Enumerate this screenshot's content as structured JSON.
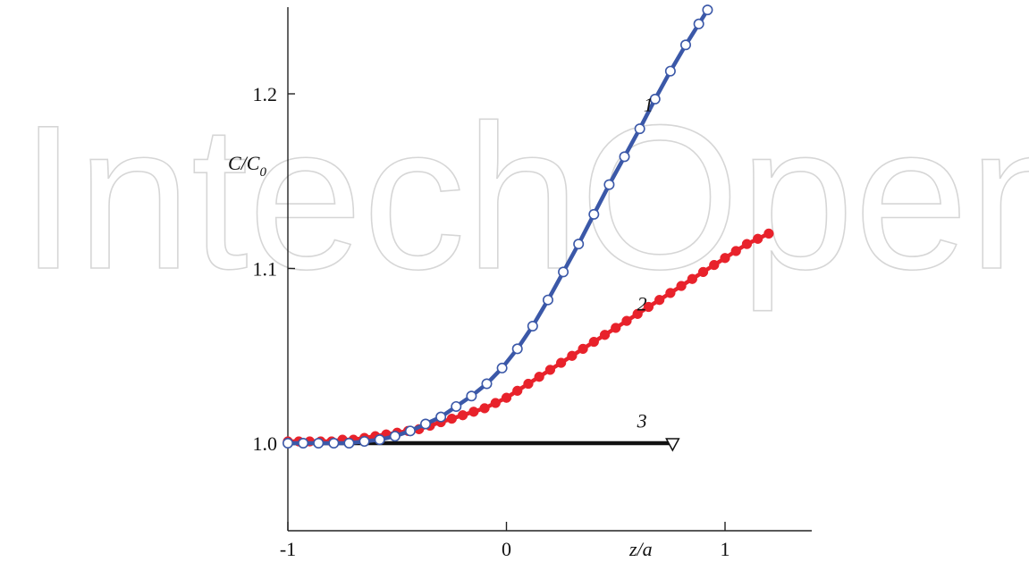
{
  "watermark": "IntechOpen",
  "chart_data": {
    "type": "line",
    "xlabel": "z/a",
    "ylabel": "C/C",
    "ylabel_sub": "0",
    "xlim": [
      -1,
      1.4
    ],
    "ylim": [
      0.95,
      1.25
    ],
    "xticks": [
      {
        "value": -1,
        "label": "-1"
      },
      {
        "value": 0,
        "label": "0"
      },
      {
        "value": 1,
        "label": "1"
      }
    ],
    "yticks": [
      {
        "value": 1.0,
        "label": "1.0"
      },
      {
        "value": 1.1,
        "label": "1.1"
      },
      {
        "value": 1.2,
        "label": "1.2"
      }
    ],
    "grid": false,
    "series": [
      {
        "name": "1",
        "color": "#3b58a8",
        "marker": "open-circle",
        "label_at": [
          0.65,
          1.19
        ],
        "x": [
          -1.0,
          -0.93,
          -0.86,
          -0.79,
          -0.72,
          -0.65,
          -0.58,
          -0.51,
          -0.44,
          -0.37,
          -0.3,
          -0.23,
          -0.16,
          -0.09,
          -0.02,
          0.05,
          0.12,
          0.19,
          0.26,
          0.33,
          0.4,
          0.47,
          0.54,
          0.61,
          0.68,
          0.75,
          0.82,
          0.88,
          0.92
        ],
        "y": [
          1.0,
          1.0,
          1.0,
          1.0,
          1.0,
          1.001,
          1.002,
          1.004,
          1.007,
          1.011,
          1.015,
          1.021,
          1.027,
          1.034,
          1.043,
          1.054,
          1.067,
          1.082,
          1.098,
          1.114,
          1.131,
          1.148,
          1.164,
          1.18,
          1.197,
          1.213,
          1.228,
          1.24,
          1.248
        ]
      },
      {
        "name": "2",
        "color": "#e8222b",
        "marker": "filled-circle",
        "label_at": [
          0.62,
          1.076
        ],
        "x": [
          -1.0,
          -0.95,
          -0.9,
          -0.85,
          -0.8,
          -0.75,
          -0.7,
          -0.65,
          -0.6,
          -0.55,
          -0.5,
          -0.45,
          -0.4,
          -0.35,
          -0.3,
          -0.25,
          -0.2,
          -0.15,
          -0.1,
          -0.05,
          0.0,
          0.05,
          0.1,
          0.15,
          0.2,
          0.25,
          0.3,
          0.35,
          0.4,
          0.45,
          0.5,
          0.55,
          0.6,
          0.65,
          0.7,
          0.75,
          0.8,
          0.85,
          0.9,
          0.95,
          1.0,
          1.05,
          1.1,
          1.15,
          1.2
        ],
        "y": [
          1.001,
          1.001,
          1.001,
          1.001,
          1.001,
          1.002,
          1.002,
          1.003,
          1.004,
          1.005,
          1.006,
          1.007,
          1.008,
          1.01,
          1.012,
          1.014,
          1.016,
          1.018,
          1.02,
          1.023,
          1.026,
          1.03,
          1.034,
          1.038,
          1.042,
          1.046,
          1.05,
          1.054,
          1.058,
          1.062,
          1.066,
          1.07,
          1.074,
          1.078,
          1.082,
          1.086,
          1.09,
          1.094,
          1.098,
          1.102,
          1.106,
          1.11,
          1.114,
          1.117,
          1.12
        ]
      },
      {
        "name": "3",
        "color": "#111111",
        "marker": "open-triangle-down",
        "label_at": [
          0.62,
          1.009
        ],
        "x": [
          -1.0,
          0.76
        ],
        "y": [
          1.0,
          1.0
        ],
        "markers_x": [
          0.76
        ]
      }
    ]
  }
}
